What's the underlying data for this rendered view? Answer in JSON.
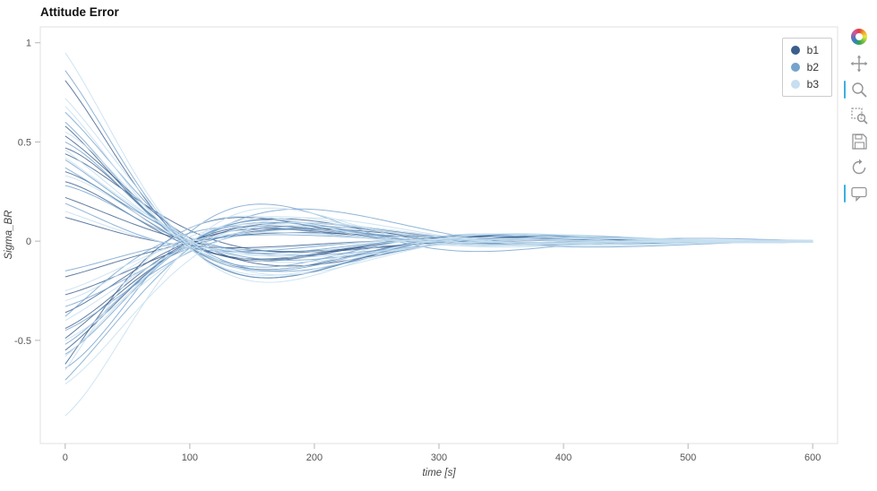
{
  "chart_data": {
    "type": "line",
    "title": "Attitude Error",
    "xlabel": "time [s]",
    "ylabel": "Sigma_BR",
    "xlim": [
      -20,
      620
    ],
    "ylim": [
      -1.02,
      1.08
    ],
    "x_ticks": [
      0,
      100,
      200,
      300,
      400,
      500,
      600
    ],
    "y_ticks": [
      1,
      0.5,
      0,
      -0.5
    ],
    "grid": false,
    "legend": {
      "position": "top-right",
      "entries": [
        {
          "label": "b1",
          "color": "#3b5e8c"
        },
        {
          "label": "b2",
          "color": "#74a3cd"
        },
        {
          "label": "b3",
          "color": "#c7dff0"
        }
      ]
    },
    "runs_format": [
      "initial_amplitude",
      "decay_tau_s",
      "period_s",
      "phase_rad"
    ],
    "series": [
      {
        "name": "b1",
        "color": "#3b5e8c",
        "opacity": 0.8,
        "runs": [
          [
            0.81,
            120,
            400,
            0.1
          ],
          [
            -0.44,
            100,
            360,
            -0.2
          ],
          [
            0.53,
            135,
            430,
            0.05
          ],
          [
            -0.62,
            95,
            380,
            0.22
          ],
          [
            0.35,
            128,
            350,
            -0.12
          ],
          [
            -0.18,
            142,
            470,
            0.15
          ],
          [
            0.47,
            108,
            340,
            -0.25
          ],
          [
            -0.55,
            118,
            410,
            0.02
          ],
          [
            0.22,
            132,
            450,
            0.18
          ],
          [
            -0.36,
            102,
            370,
            -0.15
          ],
          [
            0.58,
            125,
            390,
            0.08
          ],
          [
            -0.27,
            145,
            440,
            -0.05
          ],
          [
            0.12,
            112,
            355,
            0.28
          ],
          [
            0.44,
            98,
            415,
            -0.28
          ],
          [
            -0.49,
            122,
            465,
            0.12
          ],
          [
            0.3,
            138,
            345,
            -0.08
          ]
        ]
      },
      {
        "name": "b2",
        "color": "#74a3cd",
        "opacity": 0.8,
        "runs": [
          [
            0.86,
            115,
            395,
            0.06
          ],
          [
            -0.57,
            105,
            365,
            -0.18
          ],
          [
            0.65,
            130,
            425,
            0.1
          ],
          [
            -0.38,
            96,
            385,
            0.24
          ],
          [
            0.5,
            126,
            352,
            -0.1
          ],
          [
            -0.7,
            140,
            472,
            0.14
          ],
          [
            0.28,
            110,
            342,
            -0.22
          ],
          [
            -0.15,
            120,
            408,
            0.04
          ],
          [
            0.41,
            134,
            452,
            0.16
          ],
          [
            -0.52,
            104,
            372,
            -0.14
          ],
          [
            0.6,
            127,
            392,
            0.09
          ],
          [
            -0.33,
            143,
            442,
            -0.06
          ],
          [
            0.19,
            114,
            358,
            0.26
          ],
          [
            -0.45,
            99,
            418,
            -0.26
          ],
          [
            0.37,
            124,
            468,
            0.11
          ],
          [
            -0.64,
            136,
            348,
            -0.09
          ]
        ]
      },
      {
        "name": "b3",
        "color": "#c7dff0",
        "opacity": 0.85,
        "runs": [
          [
            0.95,
            117,
            398,
            0.07
          ],
          [
            -0.88,
            107,
            368,
            -0.19
          ],
          [
            0.72,
            131,
            428,
            0.11
          ],
          [
            -0.65,
            97,
            388,
            0.23
          ],
          [
            0.55,
            129,
            354,
            -0.11
          ],
          [
            -0.4,
            141,
            474,
            0.13
          ],
          [
            0.33,
            111,
            344,
            -0.23
          ],
          [
            -0.58,
            121,
            412,
            0.03
          ],
          [
            0.46,
            133,
            454,
            0.17
          ],
          [
            -0.25,
            103,
            374,
            -0.13
          ],
          [
            0.68,
            128,
            394,
            0.1
          ],
          [
            -0.5,
            144,
            444,
            -0.04
          ],
          [
            0.15,
            113,
            360,
            0.27
          ],
          [
            -0.72,
            100,
            420,
            -0.27
          ],
          [
            0.42,
            123,
            470,
            0.13
          ],
          [
            -0.3,
            137,
            350,
            -0.07
          ]
        ]
      }
    ]
  },
  "toolbar": {
    "logo_icon": "bokeh-logo",
    "tools": [
      {
        "name": "pan",
        "icon": "pan-icon",
        "active": false
      },
      {
        "name": "wheel-zoom",
        "icon": "magnifier-icon",
        "active": true
      },
      {
        "name": "box-zoom",
        "icon": "box-zoom-icon",
        "active": false
      },
      {
        "name": "save",
        "icon": "save-icon",
        "active": false
      },
      {
        "name": "reset",
        "icon": "reset-icon",
        "active": false
      },
      {
        "name": "hover",
        "icon": "hover-icon",
        "active": true
      }
    ]
  }
}
